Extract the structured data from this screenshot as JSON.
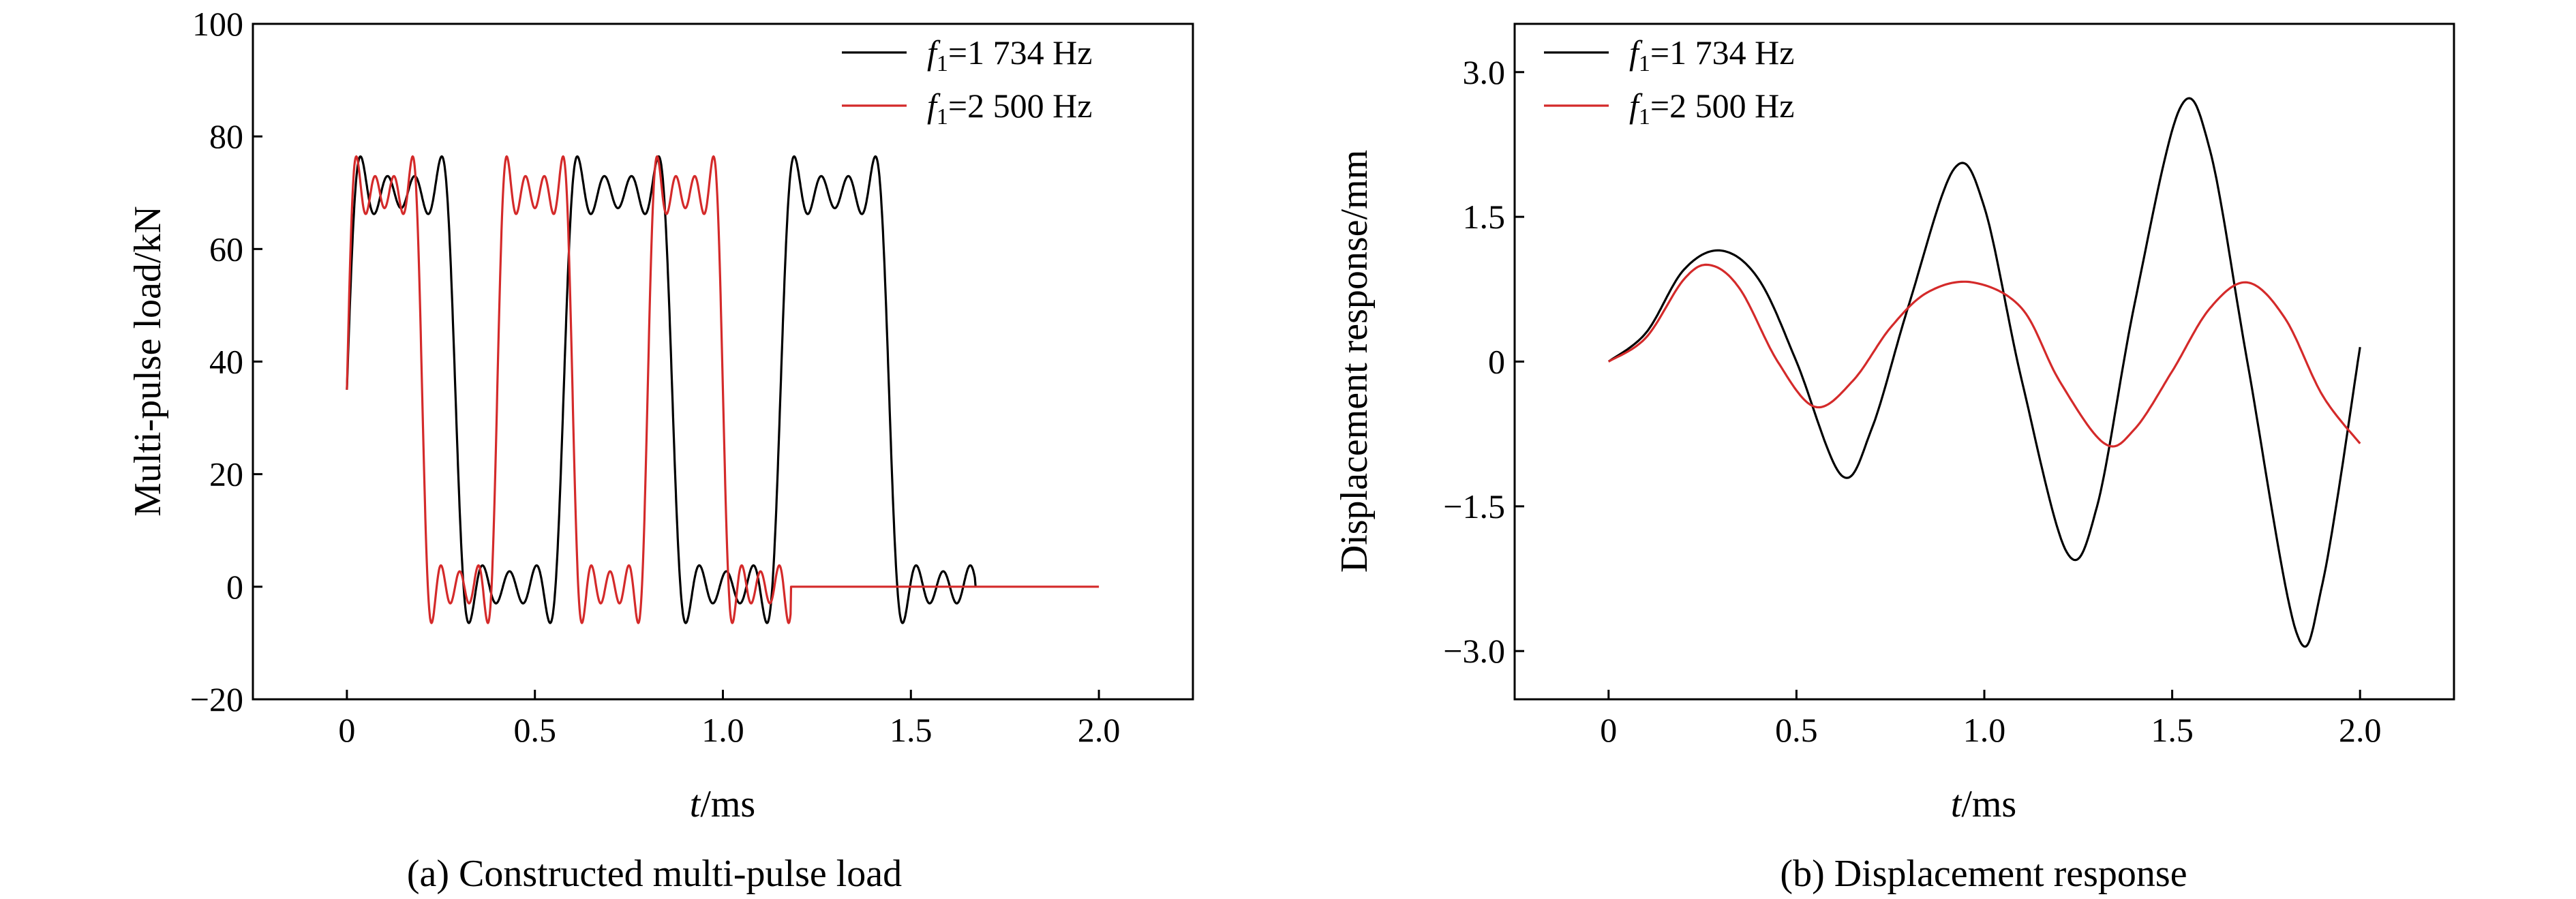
{
  "chart_data": [
    {
      "type": "line",
      "caption": "(a) Constructed multi-pulse load",
      "xlabel": {
        "italic": "t",
        "rest": "/ms"
      },
      "ylabel": "Multi-pulse load/kN",
      "xlim": [
        -0.25,
        2.25
      ],
      "ylim": [
        -20,
        100
      ],
      "xticks": [
        0,
        0.5,
        1.0,
        1.5,
        2.0
      ],
      "xtick_labels": [
        "0",
        "0.5",
        "1.0",
        "1.5",
        "2.0"
      ],
      "yticks": [
        -20,
        0,
        20,
        40,
        60,
        80,
        100
      ],
      "ytick_labels": [
        "−20",
        "0",
        "20",
        "40",
        "60",
        "80",
        "100"
      ],
      "legend_position": "top-right",
      "series": [
        {
          "name": {
            "italic": "f",
            "sub": "1",
            "rest": "=1 734 Hz"
          },
          "color": "#000000",
          "model": "square_pulse_train",
          "amplitude": 70,
          "frequency_hz": 1734,
          "harmonics": 4,
          "end_ms": 1.67
        },
        {
          "name": {
            "italic": "f",
            "sub": "1",
            "rest": "=2 500 Hz"
          },
          "color": "#d42a2a",
          "model": "square_pulse_train",
          "amplitude": 70,
          "frequency_hz": 2500,
          "harmonics": 4,
          "end_ms": 2.0
        }
      ]
    },
    {
      "type": "line",
      "caption": "(b) Displacement response",
      "xlabel": {
        "italic": "t",
        "rest": "/ms"
      },
      "ylabel": "Displacement response/mm",
      "xlim": [
        -0.25,
        2.25
      ],
      "ylim": [
        -3.5,
        3.5
      ],
      "xticks": [
        0,
        0.5,
        1.0,
        1.5,
        2.0
      ],
      "xtick_labels": [
        "0",
        "0.5",
        "1.0",
        "1.5",
        "2.0"
      ],
      "yticks": [
        -3.0,
        -1.5,
        0,
        1.5,
        3.0
      ],
      "ytick_labels": [
        "−3.0",
        "−1.5",
        "0",
        "1.5",
        "3.0"
      ],
      "legend_position": "top-left",
      "series": [
        {
          "name": {
            "italic": "f",
            "sub": "1",
            "rest": "=1 734 Hz"
          },
          "color": "#000000",
          "points": [
            [
              0,
              0
            ],
            [
              0.1,
              0.3
            ],
            [
              0.2,
              0.95
            ],
            [
              0.3,
              1.15
            ],
            [
              0.4,
              0.85
            ],
            [
              0.5,
              0.0
            ],
            [
              0.62,
              -1.18
            ],
            [
              0.7,
              -0.7
            ],
            [
              0.8,
              0.6
            ],
            [
              0.92,
              2.0
            ],
            [
              1.0,
              1.6
            ],
            [
              1.1,
              -0.2
            ],
            [
              1.22,
              -1.98
            ],
            [
              1.3,
              -1.5
            ],
            [
              1.4,
              0.6
            ],
            [
              1.52,
              2.62
            ],
            [
              1.6,
              2.2
            ],
            [
              1.7,
              0.0
            ],
            [
              1.83,
              -2.8
            ],
            [
              1.9,
              -2.3
            ],
            [
              2.0,
              0.15
            ]
          ]
        },
        {
          "name": {
            "italic": "f",
            "sub": "1",
            "rest": "=2 500 Hz"
          },
          "color": "#d42a2a",
          "points": [
            [
              0,
              0
            ],
            [
              0.1,
              0.25
            ],
            [
              0.2,
              0.85
            ],
            [
              0.27,
              1.0
            ],
            [
              0.35,
              0.75
            ],
            [
              0.45,
              0.0
            ],
            [
              0.55,
              -0.47
            ],
            [
              0.65,
              -0.2
            ],
            [
              0.75,
              0.35
            ],
            [
              0.85,
              0.72
            ],
            [
              0.97,
              0.82
            ],
            [
              1.1,
              0.55
            ],
            [
              1.2,
              -0.2
            ],
            [
              1.32,
              -0.85
            ],
            [
              1.4,
              -0.7
            ],
            [
              1.5,
              -0.1
            ],
            [
              1.6,
              0.55
            ],
            [
              1.7,
              0.82
            ],
            [
              1.8,
              0.45
            ],
            [
              1.9,
              -0.35
            ],
            [
              2.0,
              -0.85
            ]
          ]
        }
      ]
    }
  ]
}
